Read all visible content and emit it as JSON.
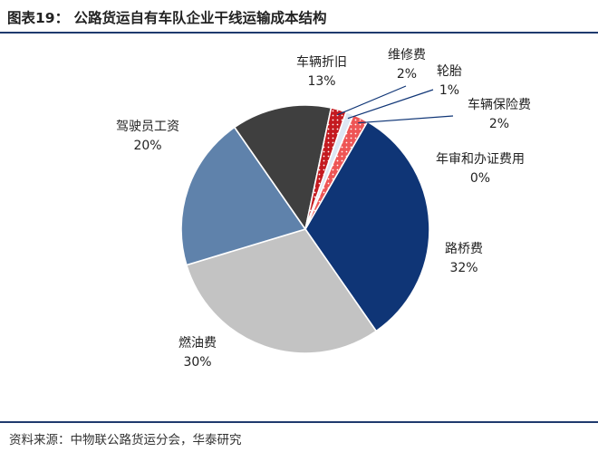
{
  "header": {
    "title": "图表19：  公路货运自有车队企业干线运输成本结构"
  },
  "footer": {
    "source": "资料来源：中物联公路货运分会，华泰研究"
  },
  "chart_data": {
    "type": "pie",
    "title": "公路货运自有车队企业干线运输成本结构",
    "slices": [
      {
        "name": "路桥费",
        "value": 32,
        "label": "32%",
        "color": "#0f3576"
      },
      {
        "name": "燃油费",
        "value": 30,
        "label": "30%",
        "color": "#c3c3c3"
      },
      {
        "name": "驾驶员工资",
        "value": 20,
        "label": "20%",
        "color": "#5f82ab"
      },
      {
        "name": "车辆折旧",
        "value": 13,
        "label": "13%",
        "color": "#3f3f3f"
      },
      {
        "name": "维修费",
        "value": 2,
        "label": "2%",
        "color": "#c41a20",
        "pattern": "dots"
      },
      {
        "name": "轮胎",
        "value": 1,
        "label": "1%",
        "color": "#dde6f3"
      },
      {
        "name": "车辆保险费",
        "value": 2,
        "label": "2%",
        "color": "#ee5555",
        "pattern": "dots"
      },
      {
        "name": "年审和办证费用",
        "value": 0,
        "label": "0%",
        "color": "#ffffff"
      }
    ],
    "start_angle_deg": 30,
    "direction": "clockwise",
    "legend": "none"
  }
}
